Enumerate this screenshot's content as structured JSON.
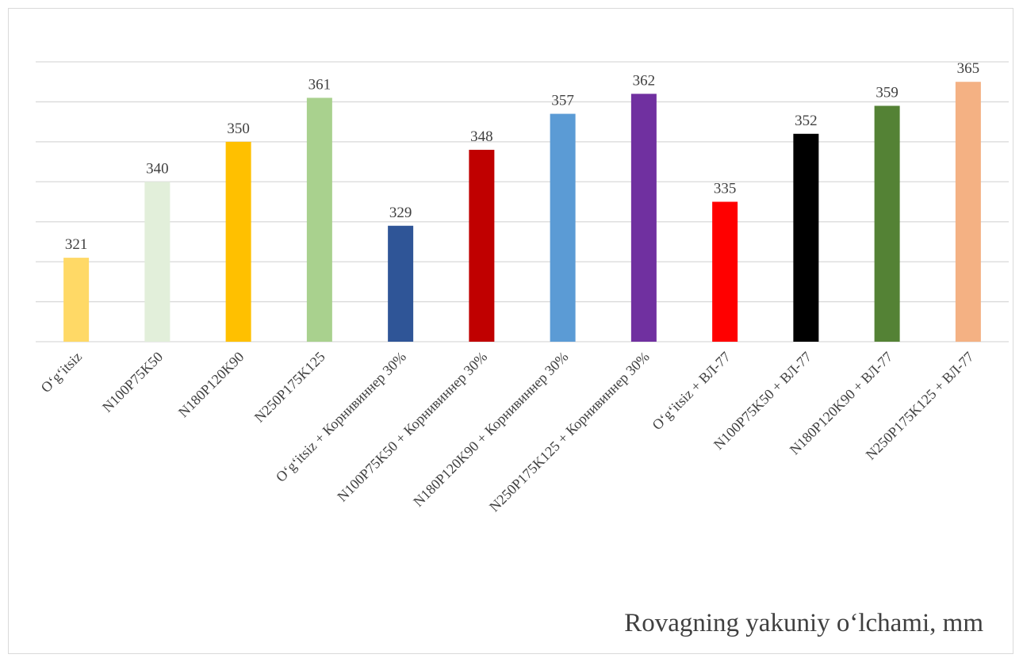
{
  "chart_data": {
    "type": "bar",
    "categories": [
      "O‘g‘itsiz",
      "N100P75K50",
      "N180P120K90",
      "N250P175K125",
      "O‘g‘itsiz + Корнивиннер 30%",
      "N100P75K50 + Корнивиннер 30%",
      "N180P120K90 + Корнивиннер 30%",
      "N250P175K125 + Корнивиннер 30%",
      "O‘g‘itsiz + ВЛ-77",
      "N100P75K50 + ВЛ-77",
      "N180P120K90 + ВЛ-77",
      "N250P175K125 + ВЛ-77"
    ],
    "values": [
      321,
      340,
      350,
      361,
      329,
      348,
      357,
      362,
      335,
      352,
      359,
      365
    ],
    "colors": [
      "#ffd966",
      "#e2efda",
      "#ffc000",
      "#a9d18e",
      "#2f5597",
      "#c00000",
      "#5b9bd5",
      "#7030a0",
      "#ff0000",
      "#000000",
      "#548235",
      "#f4b183"
    ],
    "ylim": [
      300,
      370
    ],
    "y_gridlines": true,
    "y_tick_labels_shown": false,
    "data_labels": true,
    "caption": "Rovagning yakuniy o‘lchami, mm"
  }
}
